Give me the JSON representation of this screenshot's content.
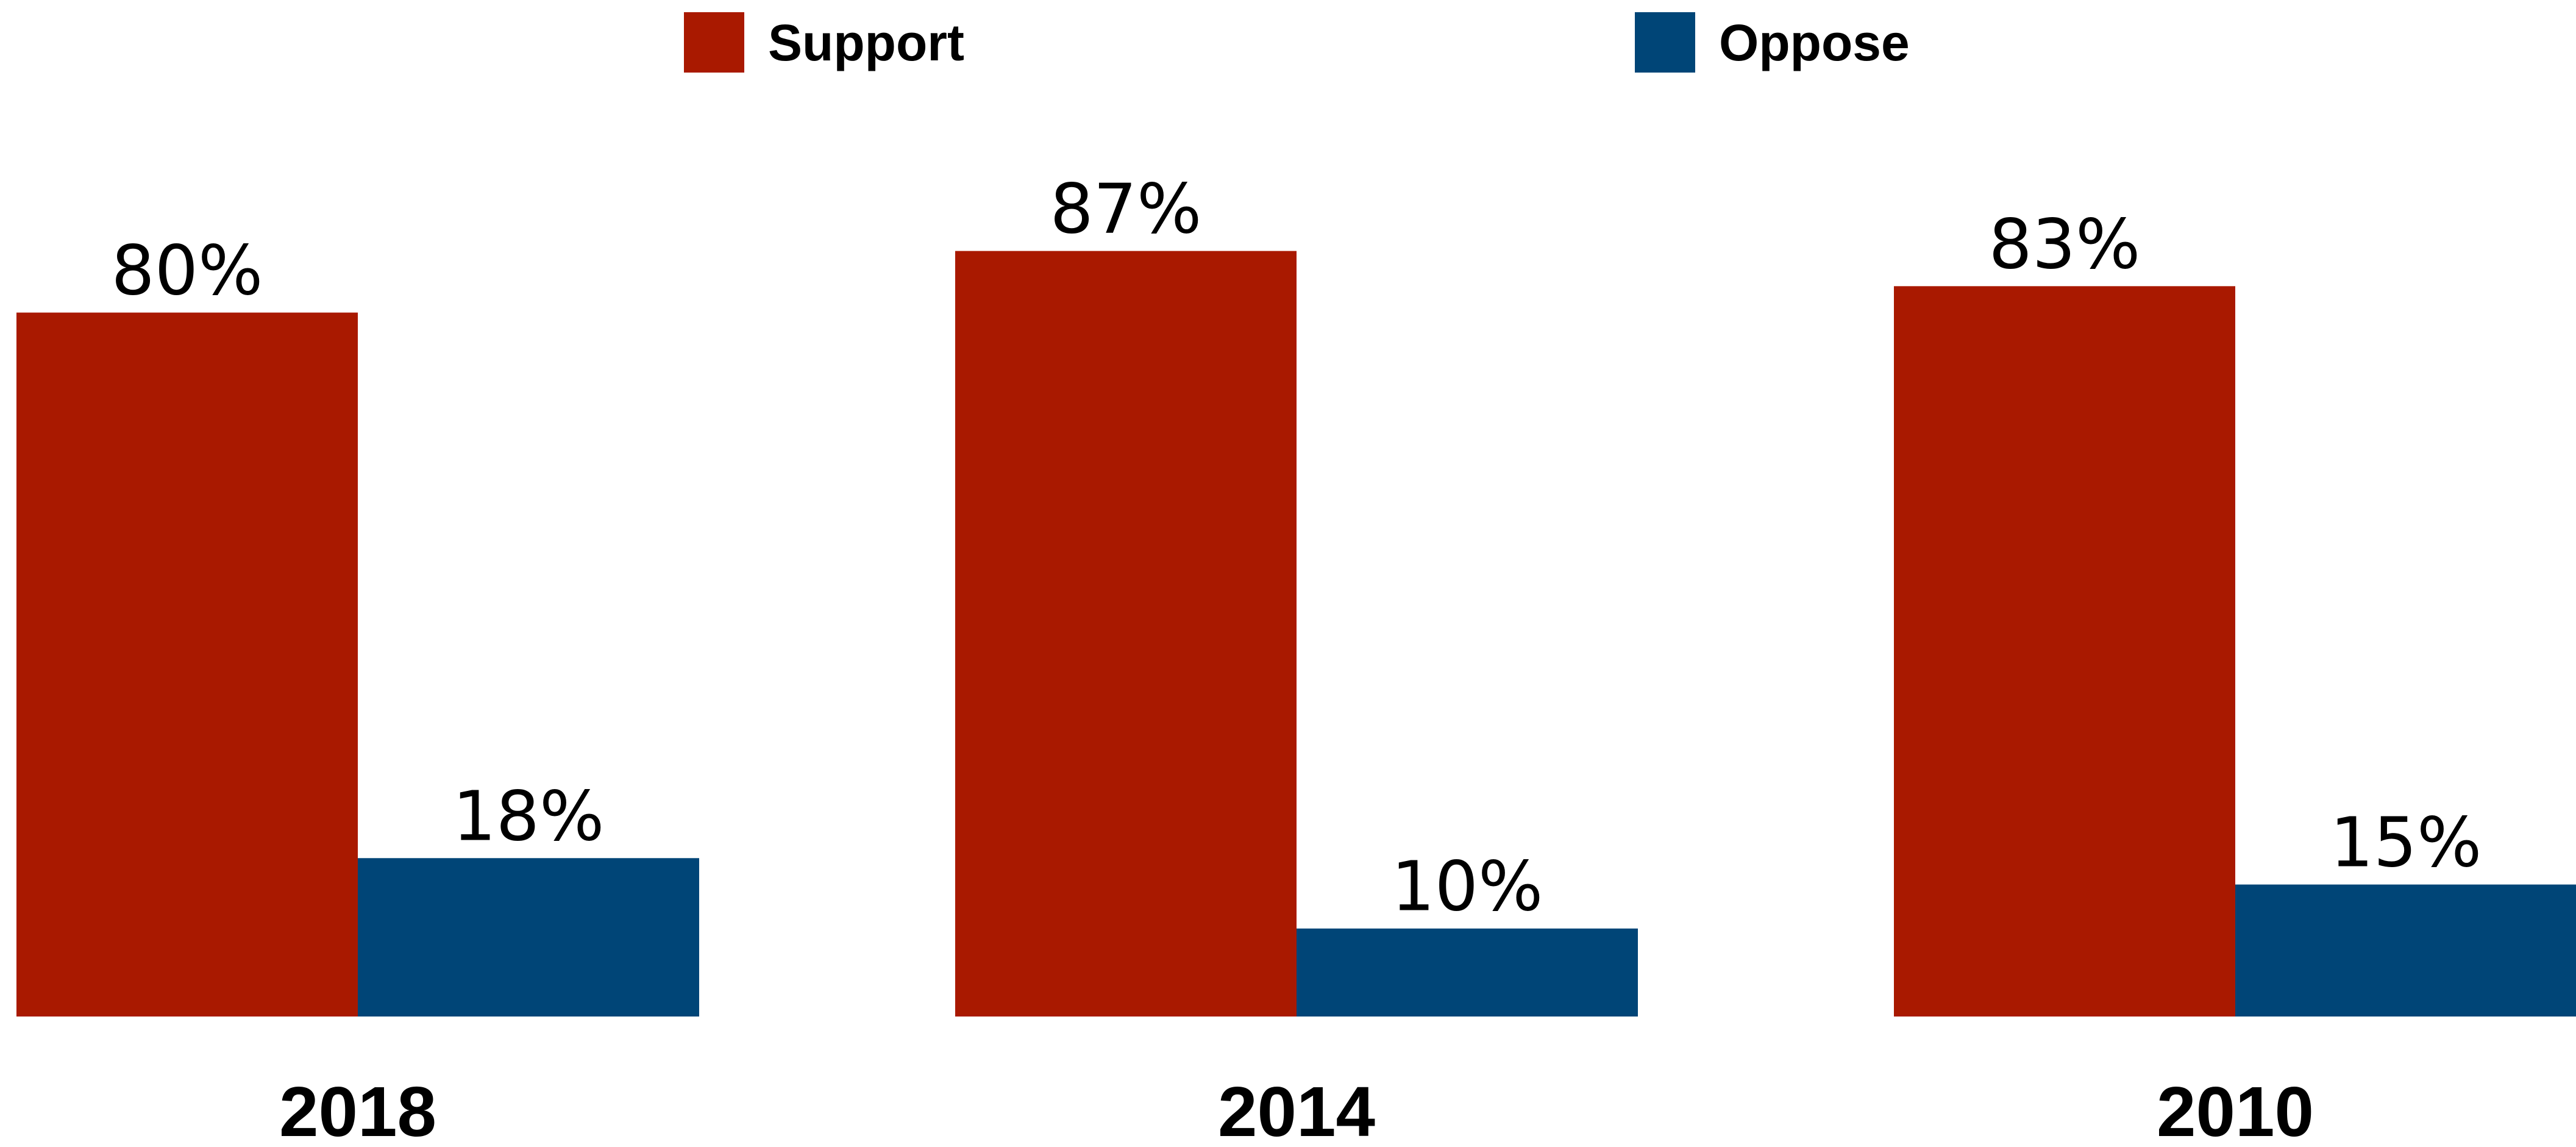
{
  "chart_data": {
    "type": "bar",
    "categories": [
      "2018",
      "2014",
      "2010"
    ],
    "series": [
      {
        "name": "Support",
        "values": [
          80,
          87,
          83
        ],
        "labels": [
          "80%",
          "87%",
          "83%"
        ],
        "color": "#a91900"
      },
      {
        "name": "Oppose",
        "values": [
          18,
          10,
          15
        ],
        "labels": [
          "18%",
          "10%",
          "15%"
        ],
        "color": "#004577"
      }
    ],
    "title": "",
    "xlabel": "",
    "ylabel": "",
    "ylim": [
      0,
      100
    ],
    "grid": false,
    "legend_position": "top"
  }
}
